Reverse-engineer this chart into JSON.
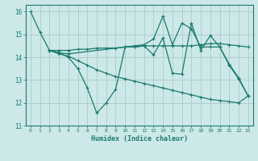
{
  "xlabel": "Humidex (Indice chaleur)",
  "xlim": [
    -0.5,
    23.5
  ],
  "ylim": [
    11,
    16.3
  ],
  "yticks": [
    11,
    12,
    13,
    14,
    15,
    16
  ],
  "xticks": [
    0,
    1,
    2,
    3,
    4,
    5,
    6,
    7,
    8,
    9,
    10,
    11,
    12,
    13,
    14,
    15,
    16,
    17,
    18,
    19,
    20,
    21,
    22,
    23
  ],
  "background_color": "#cde8e8",
  "grid_color": "#aacccc",
  "line_color": "#1a7a6e",
  "lines": [
    {
      "x": [
        0,
        1,
        2,
        3,
        4,
        5,
        6,
        7,
        8,
        9,
        10,
        11,
        12,
        13,
        14,
        15,
        16,
        17,
        18,
        19,
        20,
        21,
        22,
        23
      ],
      "y": [
        16.0,
        15.1,
        14.3,
        14.2,
        14.0,
        13.5,
        12.65,
        11.55,
        12.0,
        12.6,
        14.45,
        14.45,
        14.5,
        14.1,
        14.85,
        13.3,
        13.25,
        15.5,
        14.3,
        14.95,
        14.45,
        13.65,
        13.05,
        12.3
      ]
    },
    {
      "x": [
        2,
        3,
        4,
        5,
        6,
        7,
        8,
        9,
        10,
        11,
        12,
        13,
        14,
        15,
        16,
        17,
        18,
        19,
        20,
        21,
        22,
        23
      ],
      "y": [
        14.3,
        14.15,
        14.05,
        13.85,
        13.65,
        13.45,
        13.3,
        13.15,
        13.05,
        12.95,
        12.85,
        12.75,
        12.65,
        12.55,
        12.45,
        12.35,
        12.25,
        12.15,
        12.1,
        12.05,
        12.0,
        12.3
      ]
    },
    {
      "x": [
        2,
        3,
        4,
        5,
        6,
        7,
        8,
        9,
        10,
        11,
        12,
        13,
        14,
        15,
        16,
        17,
        18,
        19,
        20,
        21,
        22,
        23
      ],
      "y": [
        14.3,
        14.3,
        14.3,
        14.35,
        14.35,
        14.4,
        14.4,
        14.4,
        14.45,
        14.45,
        14.5,
        14.5,
        14.5,
        14.5,
        14.5,
        14.5,
        14.55,
        14.6,
        14.6,
        14.55,
        14.5,
        14.45
      ]
    },
    {
      "x": [
        2,
        3,
        4,
        10,
        11,
        12,
        13,
        14,
        15,
        16,
        17,
        18,
        19,
        20,
        21,
        22,
        23
      ],
      "y": [
        14.3,
        14.2,
        14.15,
        14.45,
        14.5,
        14.55,
        14.8,
        15.8,
        14.55,
        15.5,
        15.25,
        14.45,
        14.45,
        14.45,
        13.7,
        13.1,
        12.3
      ]
    }
  ]
}
